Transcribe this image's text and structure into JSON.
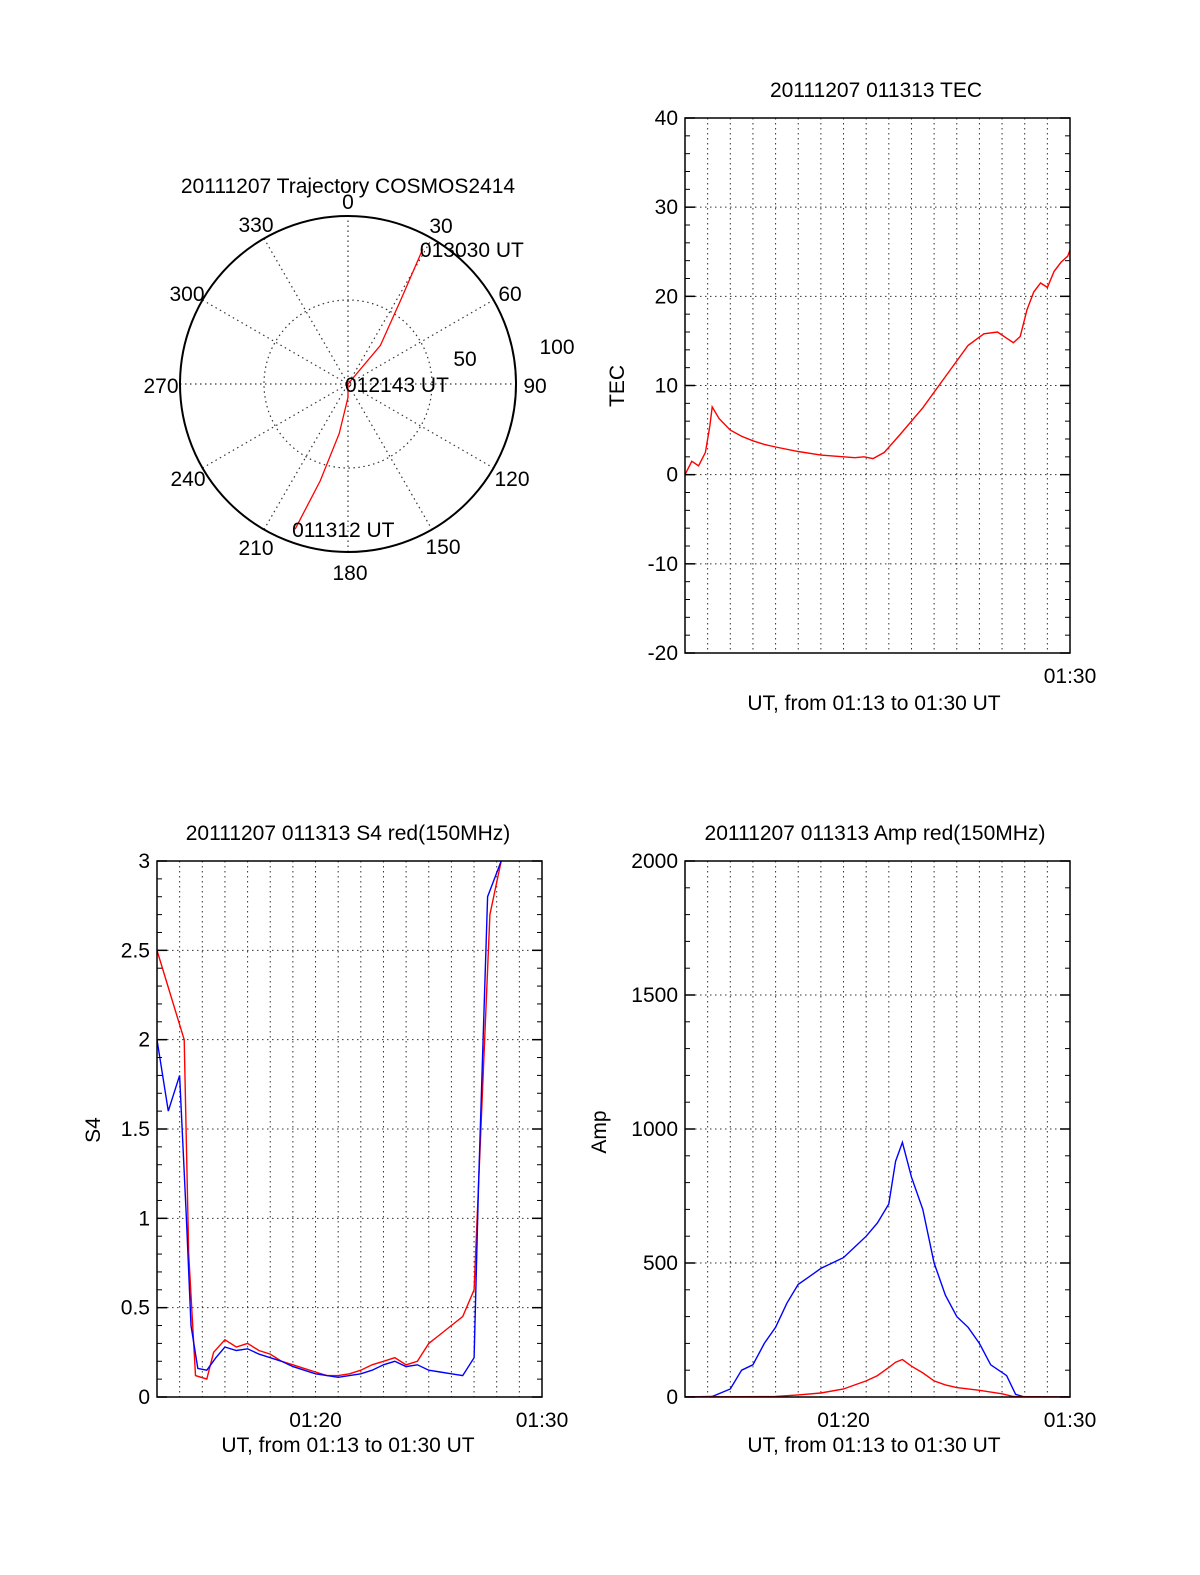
{
  "chart_data": [
    {
      "id": "trajectory",
      "type": "polar",
      "title": "20111207 Trajectory COSMOS2414",
      "azimuth_labels": [
        "0",
        "30",
        "60",
        "90",
        "120",
        "150",
        "180",
        "210",
        "240",
        "270",
        "300",
        "330"
      ],
      "radial_labels": [
        "50",
        "100"
      ],
      "grid": true,
      "series": [
        {
          "color": "#ff0000",
          "points": [
            {
              "az": 200,
              "r": 92,
              "label": "011312 UT"
            },
            {
              "az": 196,
              "r": 60
            },
            {
              "az": 190,
              "r": 30
            },
            {
              "az": 180,
              "r": 8
            },
            {
              "az": 90,
              "r": 0,
              "label": "012143 UT"
            },
            {
              "az": 40,
              "r": 30
            },
            {
              "az": 32,
              "r": 60
            },
            {
              "az": 29,
              "r": 92,
              "label": "013030 UT"
            }
          ]
        }
      ]
    },
    {
      "id": "tec",
      "type": "line",
      "title": "20111207 011313 TEC",
      "ylabel": "TEC",
      "xlabel": "UT, from 01:13 to 01:30 UT",
      "xlim": [
        0,
        17
      ],
      "ylim": [
        -20,
        40
      ],
      "yticks": [
        "-20",
        "-10",
        "0",
        "10",
        "20",
        "30",
        "40"
      ],
      "xtick_labels": [
        {
          "x": 17,
          "label": "01:30"
        }
      ],
      "grid": true,
      "series": [
        {
          "color": "#ff0000",
          "x": [
            0,
            0.3,
            0.6,
            0.9,
            1.1,
            1.2,
            1.5,
            2.0,
            2.5,
            3.0,
            3.5,
            4.0,
            5.0,
            6.0,
            7.0,
            7.5,
            7.9,
            8.3,
            8.8,
            9.5,
            10.5,
            11.5,
            12.5,
            13.2,
            13.8,
            14.2,
            14.5,
            14.8,
            15.1,
            15.4,
            15.7,
            16.0,
            16.3,
            16.6,
            16.9,
            17.0
          ],
          "y": [
            0,
            1.5,
            1.0,
            2.5,
            5.5,
            7.6,
            6.3,
            5.0,
            4.3,
            3.8,
            3.4,
            3.1,
            2.6,
            2.2,
            2.0,
            1.9,
            2.0,
            1.8,
            2.5,
            4.5,
            7.5,
            11.0,
            14.5,
            15.8,
            16.0,
            15.3,
            14.8,
            15.5,
            18.5,
            20.5,
            21.5,
            21.0,
            22.8,
            23.8,
            24.5,
            25.2
          ]
        }
      ]
    },
    {
      "id": "s4",
      "type": "line",
      "title": "20111207 011313 S4 red(150MHz)",
      "ylabel": "S4",
      "xlabel": "UT, from 01:13 to 01:30 UT",
      "xlim": [
        0,
        17
      ],
      "ylim": [
        0,
        3
      ],
      "yticks": [
        "0",
        "0.5",
        "1",
        "1.5",
        "2",
        "2.5",
        "3"
      ],
      "xtick_labels": [
        {
          "x": 7,
          "label": "01:20"
        },
        {
          "x": 17,
          "label": "01:30"
        }
      ],
      "grid": true,
      "series": [
        {
          "color": "#ff0000",
          "x": [
            0,
            1.2,
            1.4,
            1.7,
            2.2,
            2.5,
            3,
            3.5,
            4,
            4.5,
            5,
            5.5,
            6,
            6.5,
            7,
            7.5,
            8,
            8.5,
            9,
            9.5,
            10,
            10.5,
            11,
            11.5,
            12,
            12.5,
            13,
            13.5,
            14,
            14.3,
            14.7,
            15.2
          ],
          "y": [
            2.5,
            2.0,
            0.8,
            0.12,
            0.1,
            0.25,
            0.32,
            0.28,
            0.3,
            0.26,
            0.24,
            0.2,
            0.18,
            0.16,
            0.14,
            0.12,
            0.12,
            0.13,
            0.15,
            0.18,
            0.2,
            0.22,
            0.18,
            0.2,
            0.3,
            0.35,
            0.4,
            0.45,
            0.6,
            1.5,
            2.7,
            3.0
          ]
        },
        {
          "color": "#0000ff",
          "x": [
            0,
            0.5,
            1.0,
            1.3,
            1.5,
            1.8,
            2.2,
            2.6,
            3,
            3.5,
            4,
            4.5,
            5,
            5.5,
            6,
            6.5,
            7,
            7.5,
            8,
            8.5,
            9,
            9.5,
            10,
            10.5,
            11,
            11.5,
            12,
            12.5,
            13,
            13.5,
            14,
            14.2,
            14.6,
            15.2
          ],
          "y": [
            2.0,
            1.6,
            1.8,
            1.0,
            0.4,
            0.16,
            0.15,
            0.22,
            0.28,
            0.26,
            0.27,
            0.24,
            0.22,
            0.2,
            0.17,
            0.15,
            0.13,
            0.12,
            0.11,
            0.12,
            0.13,
            0.15,
            0.18,
            0.2,
            0.17,
            0.18,
            0.15,
            0.14,
            0.13,
            0.12,
            0.22,
            1.2,
            2.8,
            3.0
          ]
        }
      ]
    },
    {
      "id": "amp",
      "type": "line",
      "title": "20111207 011313 Amp red(150MHz)",
      "ylabel": "Amp",
      "xlabel": "UT, from 01:13 to 01:30 UT",
      "xlim": [
        0,
        17
      ],
      "ylim": [
        0,
        2000
      ],
      "yticks": [
        "0",
        "500",
        "1000",
        "1500",
        "2000"
      ],
      "xtick_labels": [
        {
          "x": 7,
          "label": "01:20"
        },
        {
          "x": 17,
          "label": "01:30"
        }
      ],
      "grid": true,
      "series": [
        {
          "color": "#0000ff",
          "x": [
            0,
            1.2,
            2,
            2.5,
            3,
            3.5,
            4,
            4.5,
            5,
            5.5,
            6,
            6.5,
            7,
            7.5,
            8,
            8.5,
            9,
            9.3,
            9.6,
            10,
            10.5,
            11,
            11.5,
            12,
            12.5,
            13,
            13.5,
            14.2,
            14.6,
            15.0,
            17
          ],
          "y": [
            0,
            2,
            30,
            100,
            120,
            200,
            260,
            350,
            420,
            450,
            480,
            500,
            520,
            560,
            600,
            650,
            720,
            880,
            950,
            820,
            700,
            500,
            380,
            300,
            260,
            200,
            120,
            80,
            10,
            0,
            0
          ]
        },
        {
          "color": "#ff0000",
          "x": [
            0,
            4,
            5,
            6,
            7,
            7.5,
            8,
            8.5,
            9,
            9.3,
            9.6,
            10,
            10.5,
            11,
            11.5,
            12,
            13,
            14,
            14.5,
            17
          ],
          "y": [
            0,
            2,
            8,
            15,
            30,
            45,
            60,
            80,
            110,
            130,
            140,
            115,
            90,
            60,
            45,
            35,
            25,
            12,
            2,
            0
          ]
        }
      ]
    }
  ]
}
